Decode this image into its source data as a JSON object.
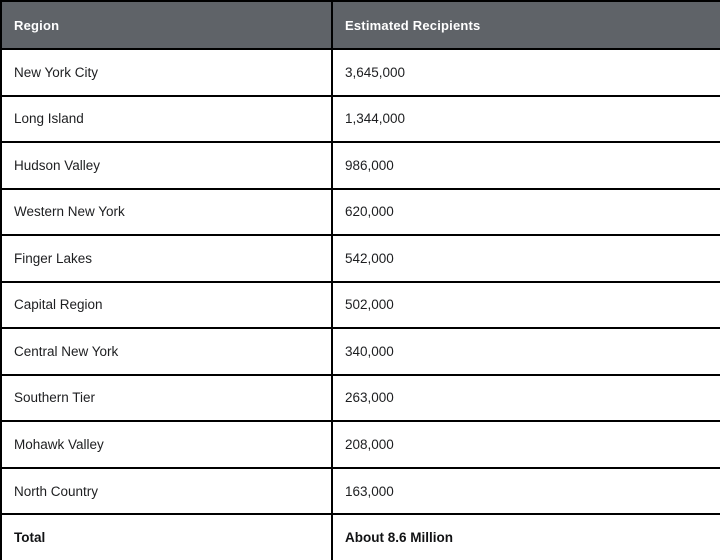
{
  "colors": {
    "header_bg": "#5f6368",
    "header_text": "#ffffff",
    "border": "#000000",
    "body_text": "#1d1e20"
  },
  "table": {
    "columns": [
      {
        "label": "Region"
      },
      {
        "label": "Estimated Recipients"
      }
    ],
    "rows": [
      {
        "region": "New York City",
        "recipients": "3,645,000"
      },
      {
        "region": "Long Island",
        "recipients": "1,344,000"
      },
      {
        "region": "Hudson Valley",
        "recipients": "986,000"
      },
      {
        "region": "Western New York",
        "recipients": "620,000"
      },
      {
        "region": "Finger Lakes",
        "recipients": "542,000"
      },
      {
        "region": "Capital Region",
        "recipients": "502,000"
      },
      {
        "region": "Central New York",
        "recipients": "340,000"
      },
      {
        "region": "Southern Tier",
        "recipients": "263,000"
      },
      {
        "region": "Mohawk Valley",
        "recipients": "208,000"
      },
      {
        "region": "North Country",
        "recipients": "163,000"
      }
    ],
    "total": {
      "label": "Total",
      "value": "About 8.6 Million"
    }
  },
  "chart_data": {
    "type": "table",
    "title": "",
    "columns": [
      "Region",
      "Estimated Recipients"
    ],
    "categories": [
      "New York City",
      "Long Island",
      "Hudson Valley",
      "Western New York",
      "Finger Lakes",
      "Capital Region",
      "Central New York",
      "Southern Tier",
      "Mohawk Valley",
      "North Country"
    ],
    "values": [
      3645000,
      1344000,
      986000,
      620000,
      542000,
      502000,
      340000,
      263000,
      208000,
      163000
    ],
    "total_label": "Total",
    "total_value": "About 8.6 Million"
  }
}
